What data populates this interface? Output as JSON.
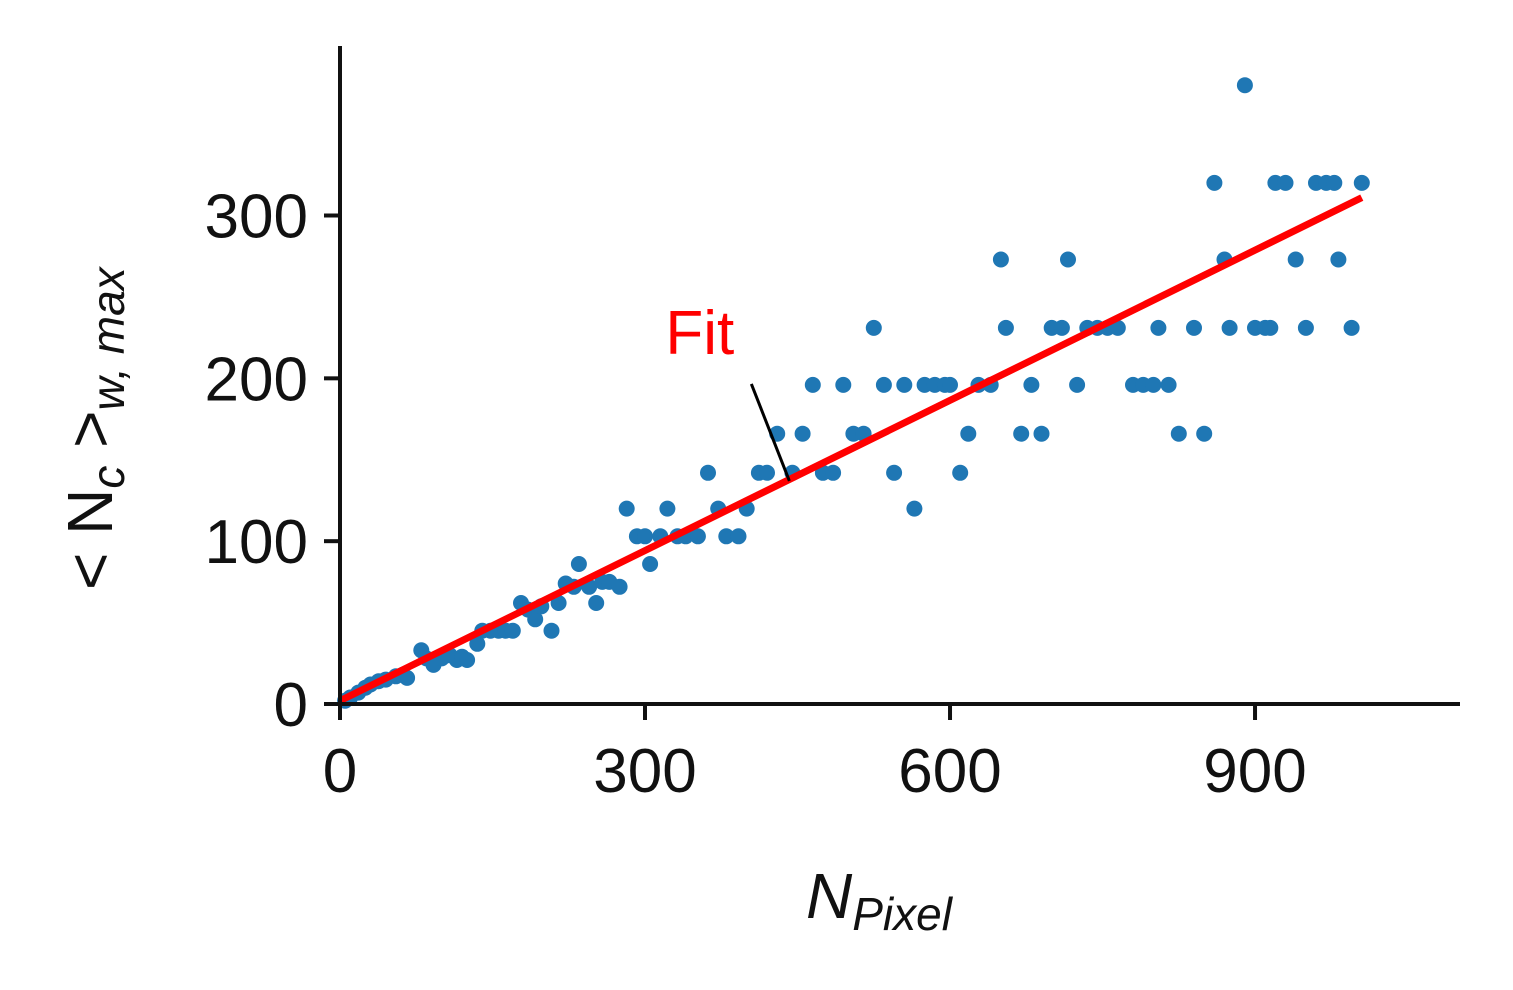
{
  "chart_data": {
    "type": "scatter",
    "title": "",
    "xlabel": {
      "main": "N",
      "sub": "Pixel"
    },
    "ylabel": {
      "prefix": "< N",
      "sub_c": "c",
      "suffix": " >",
      "sub": "w, max"
    },
    "xlim": [
      0,
      1100
    ],
    "ylim": [
      0,
      400
    ],
    "xticks": [
      0,
      300,
      600,
      900
    ],
    "yticks": [
      0,
      100,
      200,
      300
    ],
    "grid": false,
    "colors": {
      "points": "#1f77b4",
      "fit": "#ff0000",
      "axis": "#111111",
      "annotation_arrow": "#000000"
    },
    "series": [
      {
        "name": "data",
        "kind": "scatter",
        "points": [
          [
            5,
            2
          ],
          [
            10,
            4
          ],
          [
            18,
            7
          ],
          [
            25,
            10
          ],
          [
            30,
            12
          ],
          [
            38,
            14
          ],
          [
            45,
            15
          ],
          [
            55,
            17
          ],
          [
            62,
            18
          ],
          [
            66,
            16
          ],
          [
            80,
            33
          ],
          [
            85,
            28
          ],
          [
            92,
            24
          ],
          [
            100,
            28
          ],
          [
            108,
            30
          ],
          [
            115,
            27
          ],
          [
            120,
            29
          ],
          [
            125,
            27
          ],
          [
            135,
            37
          ],
          [
            140,
            45
          ],
          [
            148,
            45
          ],
          [
            156,
            45
          ],
          [
            163,
            45
          ],
          [
            170,
            45
          ],
          [
            178,
            62
          ],
          [
            185,
            58
          ],
          [
            192,
            52
          ],
          [
            198,
            60
          ],
          [
            208,
            45
          ],
          [
            215,
            62
          ],
          [
            222,
            74
          ],
          [
            230,
            72
          ],
          [
            235,
            86
          ],
          [
            245,
            72
          ],
          [
            252,
            62
          ],
          [
            258,
            75
          ],
          [
            265,
            75
          ],
          [
            275,
            72
          ],
          [
            282,
            120
          ],
          [
            292,
            103
          ],
          [
            300,
            103
          ],
          [
            305,
            86
          ],
          [
            315,
            103
          ],
          [
            322,
            120
          ],
          [
            332,
            103
          ],
          [
            340,
            103
          ],
          [
            352,
            103
          ],
          [
            362,
            142
          ],
          [
            372,
            120
          ],
          [
            380,
            103
          ],
          [
            392,
            103
          ],
          [
            400,
            120
          ],
          [
            412,
            142
          ],
          [
            420,
            142
          ],
          [
            430,
            166
          ],
          [
            445,
            142
          ],
          [
            455,
            166
          ],
          [
            465,
            196
          ],
          [
            475,
            142
          ],
          [
            485,
            142
          ],
          [
            495,
            196
          ],
          [
            505,
            166
          ],
          [
            515,
            166
          ],
          [
            525,
            231
          ],
          [
            535,
            196
          ],
          [
            545,
            142
          ],
          [
            555,
            196
          ],
          [
            565,
            120
          ],
          [
            575,
            196
          ],
          [
            585,
            196
          ],
          [
            595,
            196
          ],
          [
            600,
            196
          ],
          [
            610,
            142
          ],
          [
            618,
            166
          ],
          [
            628,
            196
          ],
          [
            640,
            196
          ],
          [
            650,
            273
          ],
          [
            655,
            231
          ],
          [
            670,
            166
          ],
          [
            680,
            196
          ],
          [
            690,
            166
          ],
          [
            700,
            231
          ],
          [
            710,
            231
          ],
          [
            716,
            273
          ],
          [
            725,
            196
          ],
          [
            735,
            231
          ],
          [
            745,
            231
          ],
          [
            755,
            231
          ],
          [
            765,
            231
          ],
          [
            780,
            196
          ],
          [
            790,
            196
          ],
          [
            800,
            196
          ],
          [
            805,
            231
          ],
          [
            815,
            196
          ],
          [
            825,
            166
          ],
          [
            840,
            231
          ],
          [
            850,
            166
          ],
          [
            860,
            320
          ],
          [
            870,
            273
          ],
          [
            875,
            231
          ],
          [
            890,
            380
          ],
          [
            900,
            231
          ],
          [
            910,
            231
          ],
          [
            915,
            231
          ],
          [
            920,
            320
          ],
          [
            930,
            320
          ],
          [
            940,
            273
          ],
          [
            950,
            231
          ],
          [
            960,
            320
          ],
          [
            970,
            320
          ],
          [
            978,
            320
          ],
          [
            982,
            273
          ],
          [
            995,
            231
          ],
          [
            1005,
            320
          ]
        ]
      },
      {
        "name": "Fit",
        "kind": "line",
        "x": [
          0,
          1005
        ],
        "y": [
          2,
          311
        ]
      }
    ],
    "annotations": [
      {
        "text": "Fit",
        "color": "#ff0000",
        "points_to": [
          442,
          137
        ],
        "text_at": [
          320,
          215
        ]
      }
    ]
  }
}
